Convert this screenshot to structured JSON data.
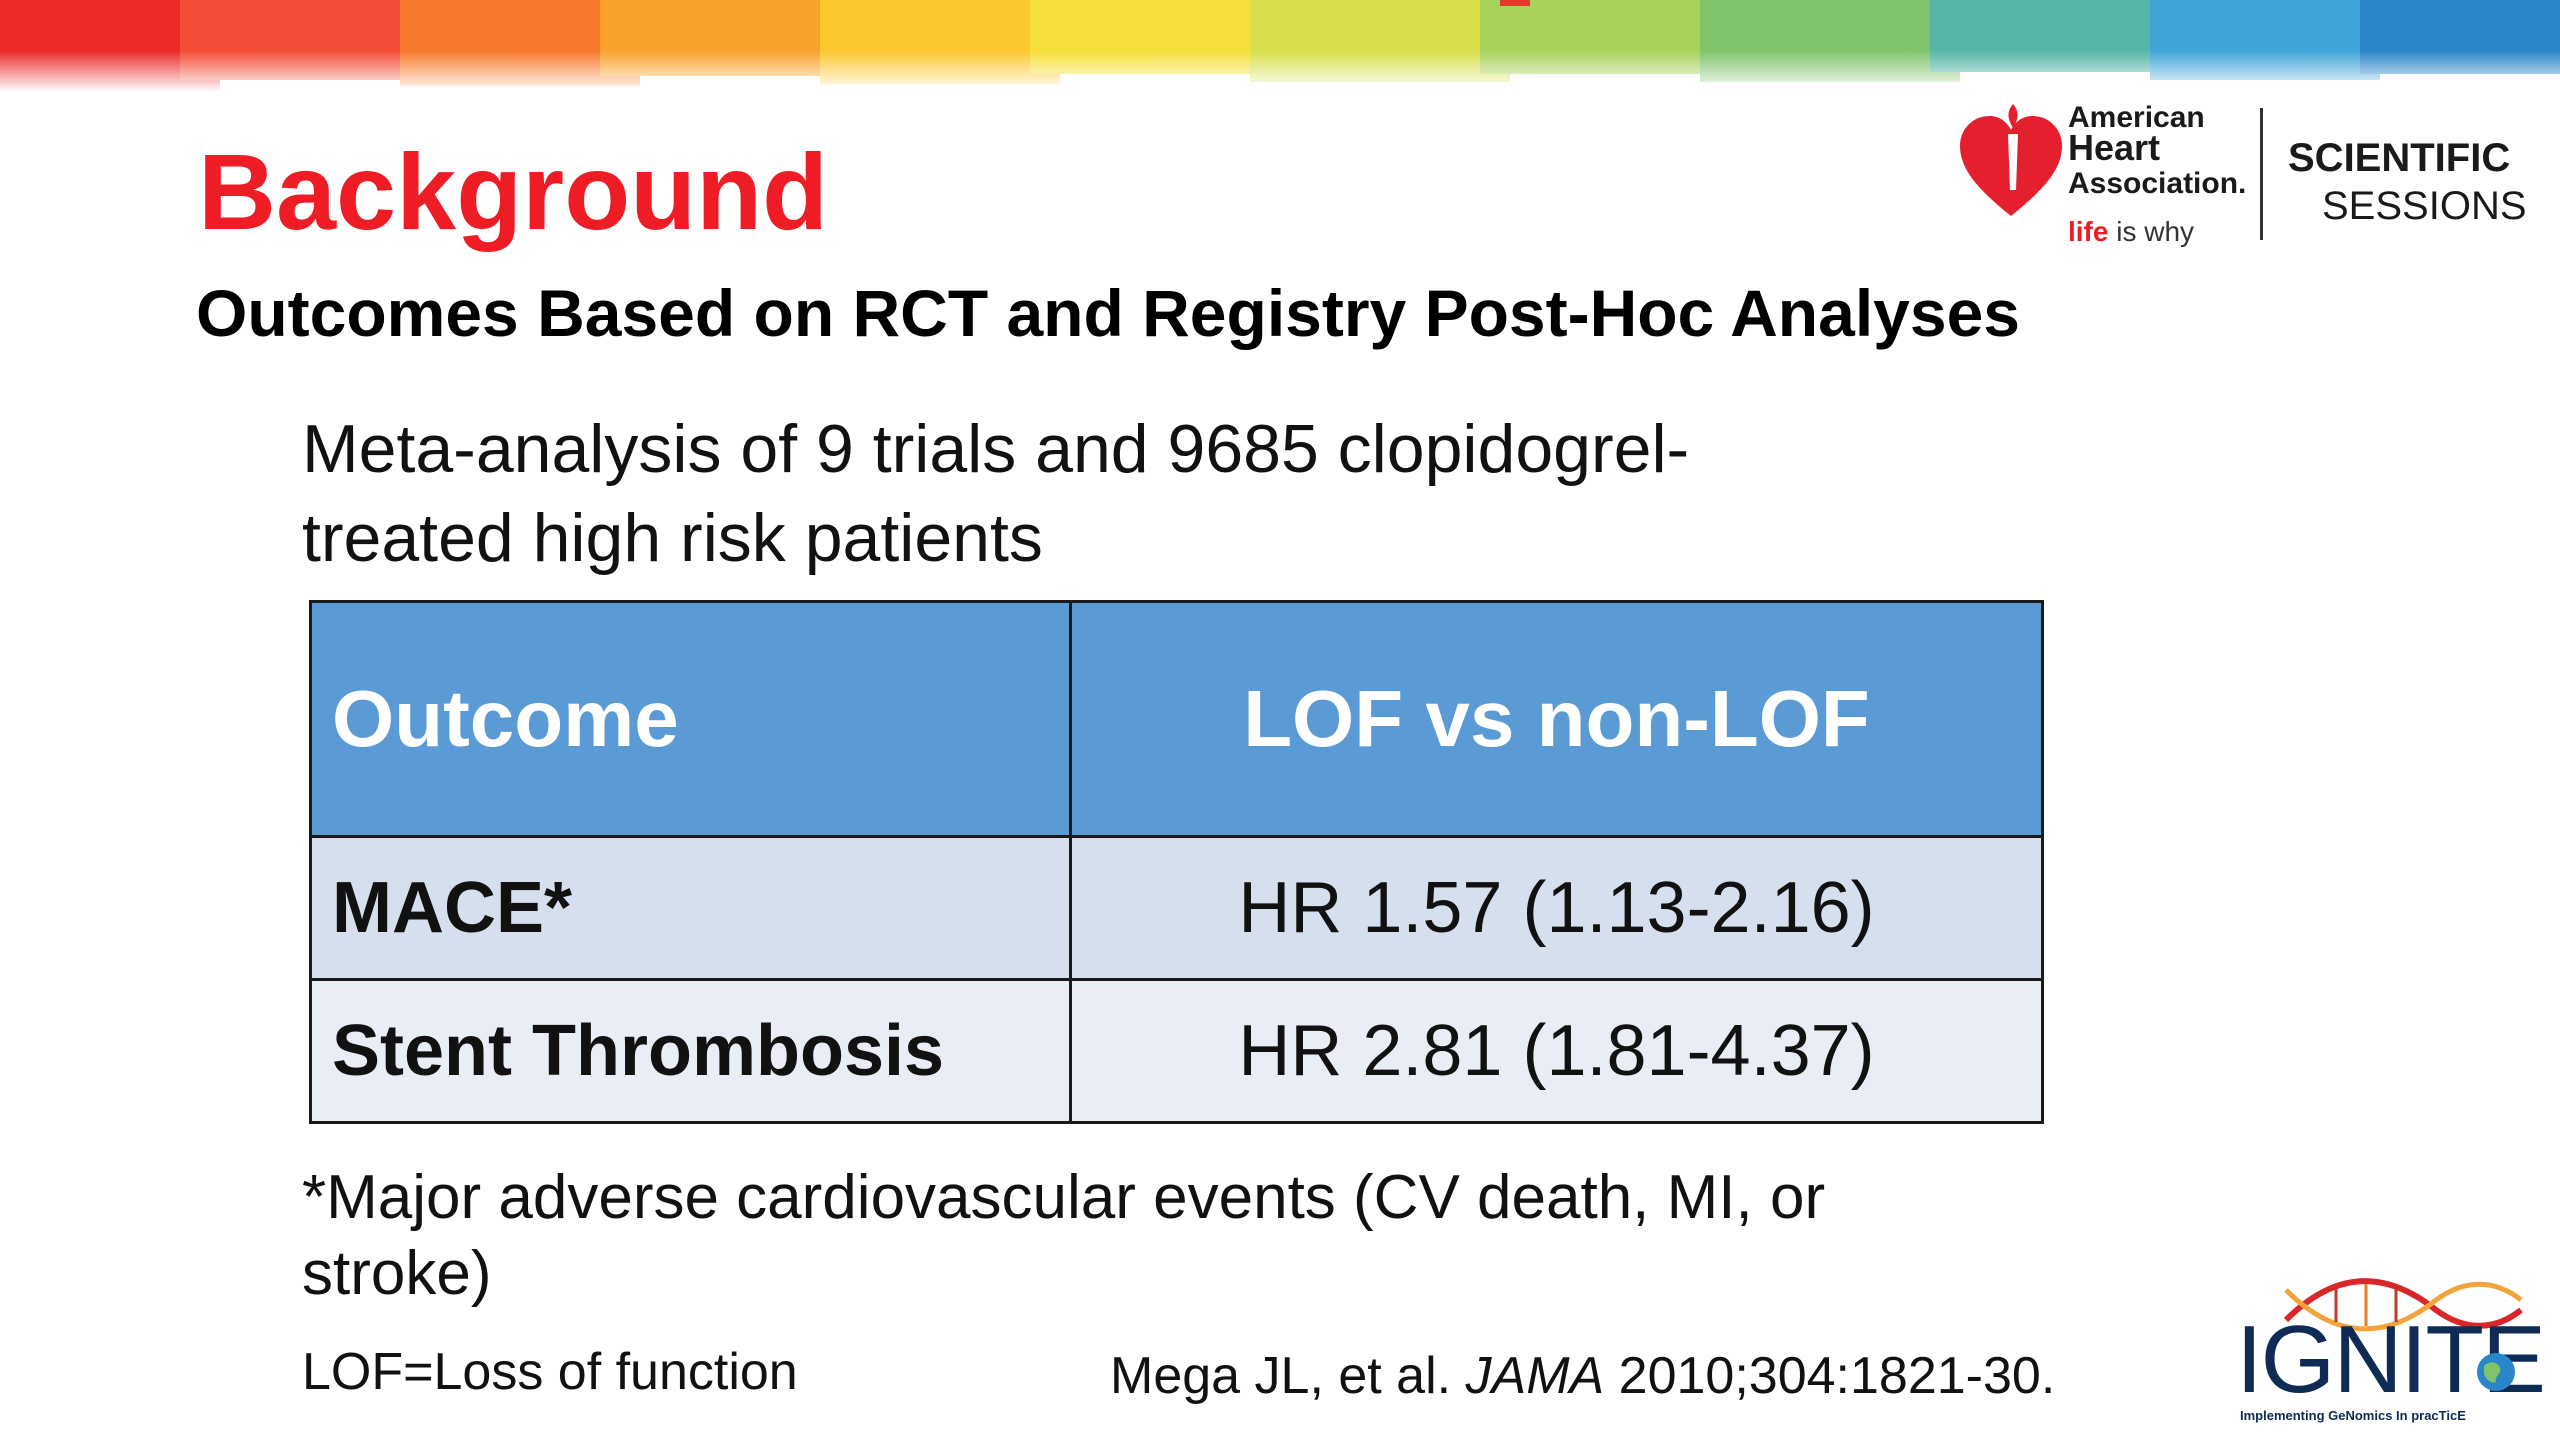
{
  "slide": {
    "title": "Background",
    "subtitle": "Outcomes Based on RCT and Registry Post-Hoc Analyses",
    "intro_lines": [
      "Meta-analysis of 9 trials and 9685 clopidogrel-",
      "treated high risk patients"
    ],
    "table": {
      "headers": [
        "Outcome",
        "LOF vs non-LOF"
      ],
      "rows": [
        {
          "outcome": "MACE*",
          "value": "HR 1.57 (1.13-2.16)"
        },
        {
          "outcome": "Stent Thrombosis",
          "value": "HR 2.81 (1.81-4.37)"
        }
      ]
    },
    "footnote_lines": [
      "*Major adverse cardiovascular events (CV death, MI, or",
      "stroke)"
    ],
    "abbreviation": "LOF=Loss of function",
    "citation": {
      "author": "Mega JL, et al.",
      "journal": "JAMA",
      "details": "2010;304:1821-30."
    }
  },
  "aha_logo": {
    "line1": "American",
    "line2": "Heart",
    "line3": "Association.",
    "tagline_red": "life",
    "tagline_rest": "is why",
    "sessions_line1": "SCIENTIFIC",
    "sessions_line2": "SESSIONS"
  },
  "ignite_logo": {
    "word": "IGNITE",
    "tagline": "Implementing GeNomics In pracTicE"
  },
  "colors": {
    "title_red": "#ee1c25",
    "table_header_blue": "#5b9bd5",
    "row_light": "#d6dfee",
    "row_lighter": "#e9edf6"
  }
}
